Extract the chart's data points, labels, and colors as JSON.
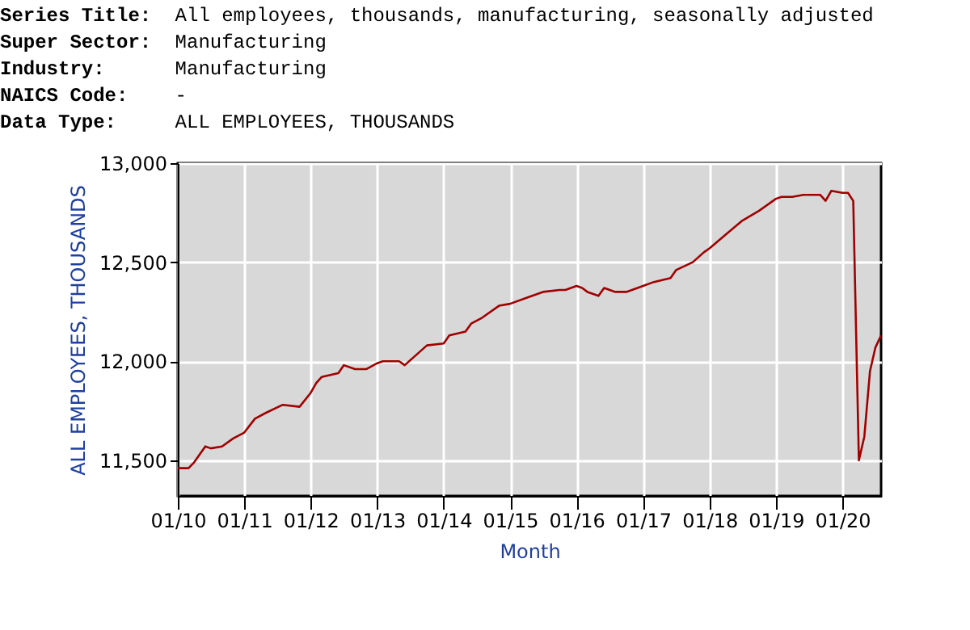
{
  "chart_data": {
    "type": "line",
    "annotations": [
      "Series Title: All employees, thousands, manufacturing, seasonally adjusted",
      "Super Sector: Manufacturing",
      "Industry: Manufacturing",
      "NAICS Code: -",
      "Data Type: ALL EMPLOYEES, THOUSANDS"
    ],
    "xlabel": "Month",
    "ylabel": "ALL EMPLOYEES, THOUSANDS",
    "x": [
      "2010-01",
      "2010-03",
      "2010-04",
      "2010-06",
      "2010-07",
      "2010-09",
      "2010-11",
      "2011-01",
      "2011-03",
      "2011-05",
      "2011-08",
      "2011-11",
      "2012-01",
      "2012-02",
      "2012-03",
      "2012-06",
      "2012-07",
      "2012-09",
      "2012-11",
      "2013-01",
      "2013-02",
      "2013-05",
      "2013-06",
      "2013-08",
      "2013-10",
      "2014-01",
      "2014-02",
      "2014-05",
      "2014-06",
      "2014-08",
      "2014-11",
      "2015-01",
      "2015-04",
      "2015-07",
      "2015-10",
      "2015-11",
      "2016-01",
      "2016-02",
      "2016-03",
      "2016-05",
      "2016-06",
      "2016-08",
      "2016-10",
      "2017-01",
      "2017-03",
      "2017-06",
      "2017-07",
      "2017-10",
      "2017-12",
      "2018-01",
      "2018-04",
      "2018-07",
      "2018-10",
      "2019-01",
      "2019-02",
      "2019-04",
      "2019-06",
      "2019-09",
      "2019-10",
      "2019-11",
      "2020-01",
      "2020-02",
      "2020-03",
      "2020-04",
      "2020-05",
      "2020-06",
      "2020-07",
      "2020-08"
    ],
    "series": [
      {
        "color": "#a00000",
        "values": [
          11460,
          11460,
          11490,
          11570,
          11560,
          11570,
          11610,
          11640,
          11710,
          11740,
          11780,
          11770,
          11840,
          11890,
          11920,
          11940,
          11980,
          11960,
          11960,
          11990,
          12000,
          12000,
          11980,
          12030,
          12080,
          12090,
          12130,
          12150,
          12190,
          12220,
          12280,
          12290,
          12320,
          12350,
          12360,
          12360,
          12380,
          12370,
          12350,
          12330,
          12370,
          12350,
          12350,
          12380,
          12400,
          12420,
          12460,
          12500,
          12550,
          12570,
          12640,
          12710,
          12760,
          12820,
          12830,
          12830,
          12840,
          12840,
          12810,
          12860,
          12850,
          12850,
          12810,
          11500,
          11620,
          11950,
          12070,
          12130
        ]
      }
    ],
    "xlim": [
      "2010-01",
      "2020-08"
    ],
    "xticks": [
      {
        "value": "2010-01",
        "label": "01/10"
      },
      {
        "value": "2011-01",
        "label": "01/11"
      },
      {
        "value": "2012-01",
        "label": "01/12"
      },
      {
        "value": "2013-01",
        "label": "01/13"
      },
      {
        "value": "2014-01",
        "label": "01/14"
      },
      {
        "value": "2015-01",
        "label": "01/15"
      },
      {
        "value": "2016-01",
        "label": "01/16"
      },
      {
        "value": "2017-01",
        "label": "01/17"
      },
      {
        "value": "2018-01",
        "label": "01/18"
      },
      {
        "value": "2019-01",
        "label": "01/19"
      },
      {
        "value": "2020-01",
        "label": "01/20"
      }
    ],
    "ylim": [
      11320,
      13000
    ],
    "yticks": [
      {
        "value": 11500,
        "label": "11,500"
      },
      {
        "value": 12000,
        "label": "12,000"
      },
      {
        "value": 12500,
        "label": "12,500"
      },
      {
        "value": 13000,
        "label": "13,000"
      }
    ],
    "grid": true,
    "marker": "none",
    "line_style": "solid"
  }
}
